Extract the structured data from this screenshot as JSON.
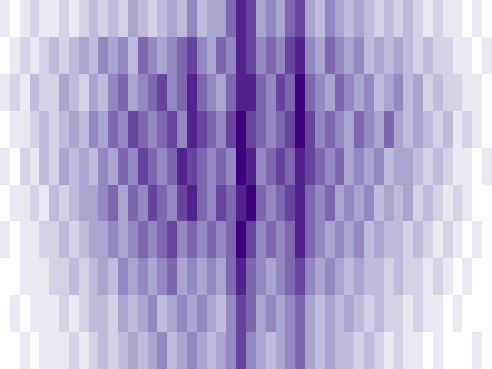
{
  "chart_data": {
    "type": "heatmap",
    "color": "#3f007d",
    "tick_labels": false,
    "zlim": [
      0,
      9
    ],
    "cells": [
      [
        1,
        0,
        1,
        2,
        1,
        1,
        2,
        1,
        2,
        3,
        2,
        3,
        2,
        4,
        3,
        2,
        3,
        4,
        3,
        5,
        3,
        4,
        4,
        6,
        8,
        7,
        4,
        5,
        4,
        6,
        7,
        4,
        3,
        5,
        4,
        3,
        4,
        3,
        2,
        3,
        2,
        3,
        2,
        1,
        2,
        1,
        1,
        0,
        1,
        0
      ],
      [
        0,
        1,
        2,
        1,
        2,
        3,
        2,
        3,
        4,
        3,
        5,
        4,
        5,
        3,
        6,
        5,
        4,
        5,
        6,
        7,
        5,
        4,
        6,
        5,
        8,
        7,
        5,
        6,
        5,
        7,
        8,
        5,
        4,
        6,
        5,
        4,
        5,
        3,
        4,
        3,
        4,
        3,
        2,
        3,
        2,
        2,
        1,
        1,
        0,
        1
      ],
      [
        1,
        2,
        1,
        3,
        2,
        2,
        4,
        3,
        2,
        4,
        3,
        5,
        6,
        4,
        5,
        6,
        7,
        5,
        6,
        8,
        6,
        5,
        4,
        6,
        8,
        8,
        6,
        5,
        7,
        6,
        9,
        6,
        5,
        4,
        6,
        5,
        4,
        5,
        3,
        4,
        5,
        3,
        4,
        2,
        3,
        2,
        2,
        1,
        1,
        0
      ],
      [
        0,
        1,
        1,
        2,
        3,
        2,
        3,
        4,
        3,
        5,
        4,
        6,
        5,
        7,
        6,
        5,
        6,
        7,
        5,
        8,
        7,
        6,
        5,
        7,
        9,
        7,
        6,
        5,
        6,
        7,
        9,
        7,
        5,
        6,
        5,
        4,
        6,
        5,
        4,
        6,
        4,
        3,
        4,
        3,
        2,
        3,
        1,
        2,
        1,
        0
      ],
      [
        1,
        0,
        2,
        1,
        3,
        2,
        4,
        3,
        4,
        3,
        5,
        4,
        6,
        5,
        7,
        6,
        5,
        6,
        8,
        7,
        6,
        5,
        6,
        5,
        9,
        8,
        5,
        6,
        7,
        6,
        8,
        7,
        6,
        5,
        6,
        4,
        5,
        4,
        5,
        3,
        4,
        4,
        3,
        2,
        3,
        2,
        1,
        1,
        0,
        1
      ],
      [
        0,
        1,
        1,
        2,
        1,
        3,
        2,
        3,
        4,
        4,
        5,
        6,
        4,
        6,
        5,
        7,
        6,
        5,
        7,
        8,
        6,
        5,
        7,
        6,
        8,
        9,
        6,
        5,
        6,
        7,
        8,
        6,
        5,
        6,
        4,
        5,
        4,
        5,
        3,
        4,
        3,
        4,
        2,
        3,
        2,
        1,
        2,
        1,
        0,
        0
      ],
      [
        1,
        0,
        1,
        1,
        2,
        2,
        3,
        2,
        3,
        4,
        4,
        5,
        4,
        5,
        6,
        5,
        6,
        7,
        5,
        6,
        5,
        6,
        5,
        6,
        9,
        7,
        5,
        6,
        5,
        6,
        8,
        6,
        5,
        4,
        5,
        4,
        5,
        3,
        4,
        3,
        3,
        2,
        3,
        2,
        1,
        2,
        1,
        0,
        1,
        0
      ],
      [
        0,
        0,
        1,
        1,
        1,
        2,
        2,
        3,
        2,
        3,
        4,
        3,
        5,
        4,
        5,
        4,
        5,
        6,
        4,
        5,
        4,
        5,
        4,
        6,
        8,
        6,
        5,
        4,
        5,
        6,
        7,
        5,
        4,
        5,
        4,
        3,
        4,
        3,
        3,
        2,
        3,
        2,
        2,
        1,
        2,
        1,
        0,
        1,
        0,
        0
      ],
      [
        0,
        1,
        0,
        1,
        1,
        1,
        2,
        1,
        2,
        3,
        3,
        2,
        4,
        3,
        4,
        5,
        3,
        4,
        5,
        4,
        5,
        4,
        3,
        5,
        7,
        6,
        4,
        5,
        4,
        5,
        6,
        4,
        3,
        4,
        3,
        4,
        3,
        2,
        3,
        2,
        2,
        1,
        2,
        1,
        1,
        0,
        1,
        0,
        0,
        0
      ],
      [
        0,
        0,
        1,
        0,
        1,
        1,
        1,
        2,
        1,
        2,
        3,
        2,
        3,
        4,
        3,
        4,
        5,
        3,
        4,
        5,
        4,
        3,
        4,
        5,
        7,
        5,
        4,
        3,
        4,
        5,
        6,
        4,
        3,
        4,
        3,
        3,
        2,
        3,
        2,
        1,
        2,
        1,
        1,
        0,
        1,
        0,
        0,
        0,
        1,
        0
      ]
    ]
  }
}
